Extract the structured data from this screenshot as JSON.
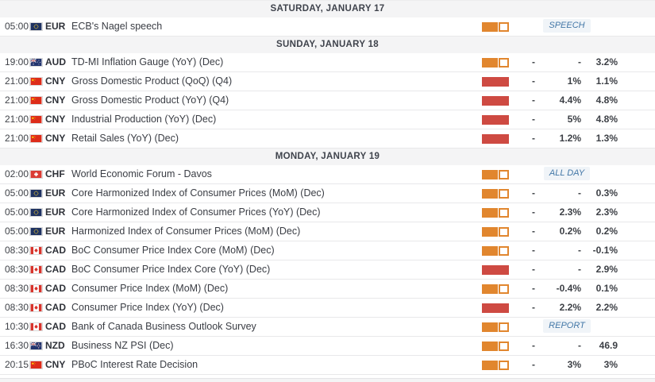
{
  "colors": {
    "impact_medium": "#e1862e",
    "impact_high": "#ce4a42",
    "badge_text": "#4377a7",
    "badge_bg": "#f0f4f8",
    "header_bg": "#f4f4f5",
    "header_text": "#3f434c"
  },
  "calendar": {
    "sections": [
      {
        "date": "SATURDAY, JANUARY 17",
        "events": [
          {
            "time": "05:00",
            "flag": "eur",
            "currency": "EUR",
            "title": "ECB's Nagel speech",
            "impact": "medium",
            "badge": "SPEECH"
          }
        ]
      },
      {
        "date": "SUNDAY, JANUARY 18",
        "events": [
          {
            "time": "19:00",
            "flag": "aud",
            "currency": "AUD",
            "title": "TD-MI Inflation Gauge (YoY) (Dec)",
            "impact": "medium",
            "actual": "-",
            "forecast": "-",
            "previous": "3.2%"
          },
          {
            "time": "21:00",
            "flag": "cny",
            "currency": "CNY",
            "title": "Gross Domestic Product (QoQ) (Q4)",
            "impact": "high",
            "actual": "-",
            "forecast": "1%",
            "previous": "1.1%"
          },
          {
            "time": "21:00",
            "flag": "cny",
            "currency": "CNY",
            "title": "Gross Domestic Product (YoY) (Q4)",
            "impact": "high",
            "actual": "-",
            "forecast": "4.4%",
            "previous": "4.8%"
          },
          {
            "time": "21:00",
            "flag": "cny",
            "currency": "CNY",
            "title": "Industrial Production (YoY) (Dec)",
            "impact": "high",
            "actual": "-",
            "forecast": "5%",
            "previous": "4.8%"
          },
          {
            "time": "21:00",
            "flag": "cny",
            "currency": "CNY",
            "title": "Retail Sales (YoY) (Dec)",
            "impact": "high",
            "actual": "-",
            "forecast": "1.2%",
            "previous": "1.3%"
          }
        ]
      },
      {
        "date": "MONDAY, JANUARY 19",
        "events": [
          {
            "time": "02:00",
            "flag": "chf",
            "currency": "CHF",
            "title": "World Economic Forum - Davos",
            "impact": "medium",
            "badge": "ALL DAY"
          },
          {
            "time": "05:00",
            "flag": "eur",
            "currency": "EUR",
            "title": "Core Harmonized Index of Consumer Prices (MoM) (Dec)",
            "impact": "medium",
            "actual": "-",
            "forecast": "-",
            "previous": "0.3%"
          },
          {
            "time": "05:00",
            "flag": "eur",
            "currency": "EUR",
            "title": "Core Harmonized Index of Consumer Prices (YoY) (Dec)",
            "impact": "medium",
            "actual": "-",
            "forecast": "2.3%",
            "previous": "2.3%"
          },
          {
            "time": "05:00",
            "flag": "eur",
            "currency": "EUR",
            "title": "Harmonized Index of Consumer Prices (MoM) (Dec)",
            "impact": "medium",
            "actual": "-",
            "forecast": "0.2%",
            "previous": "0.2%"
          },
          {
            "time": "08:30",
            "flag": "cad",
            "currency": "CAD",
            "title": "BoC Consumer Price Index Core (MoM) (Dec)",
            "impact": "medium",
            "actual": "-",
            "forecast": "-",
            "previous": "-0.1%"
          },
          {
            "time": "08:30",
            "flag": "cad",
            "currency": "CAD",
            "title": "BoC Consumer Price Index Core (YoY) (Dec)",
            "impact": "high",
            "actual": "-",
            "forecast": "-",
            "previous": "2.9%"
          },
          {
            "time": "08:30",
            "flag": "cad",
            "currency": "CAD",
            "title": "Consumer Price Index (MoM) (Dec)",
            "impact": "medium",
            "actual": "-",
            "forecast": "-0.4%",
            "previous": "0.1%"
          },
          {
            "time": "08:30",
            "flag": "cad",
            "currency": "CAD",
            "title": "Consumer Price Index (YoY) (Dec)",
            "impact": "high",
            "actual": "-",
            "forecast": "2.2%",
            "previous": "2.2%"
          },
          {
            "time": "10:30",
            "flag": "cad",
            "currency": "CAD",
            "title": "Bank of Canada Business Outlook Survey",
            "impact": "medium",
            "badge": "REPORT"
          },
          {
            "time": "16:30",
            "flag": "nzd",
            "currency": "NZD",
            "title": "Business NZ PSI (Dec)",
            "impact": "medium",
            "actual": "-",
            "forecast": "-",
            "previous": "46.9"
          },
          {
            "time": "20:15",
            "flag": "cny",
            "currency": "CNY",
            "title": "PBoC Interest Rate Decision",
            "impact": "medium",
            "actual": "-",
            "forecast": "3%",
            "previous": "3%"
          }
        ]
      }
    ]
  }
}
